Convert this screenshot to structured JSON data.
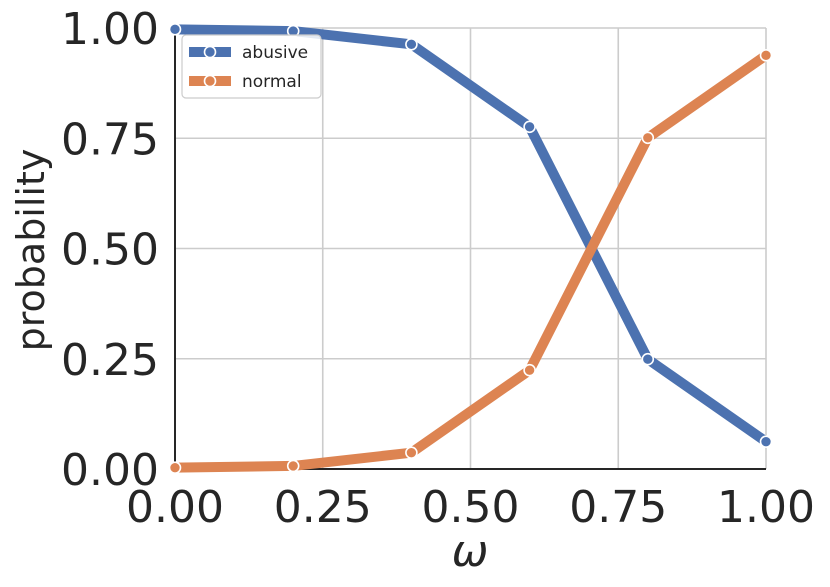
{
  "chart_data": {
    "type": "line",
    "xlabel": "ω",
    "ylabel": "probability",
    "xlim": [
      0,
      1
    ],
    "ylim": [
      0,
      1
    ],
    "x_ticks": [
      "0.00",
      "0.25",
      "0.50",
      "0.75",
      "1.00"
    ],
    "y_ticks": [
      "0.00",
      "0.25",
      "0.50",
      "0.75",
      "1.00"
    ],
    "grid": true,
    "legend_position": "top-left",
    "x": [
      0.0,
      0.2,
      0.4,
      0.6,
      0.8,
      1.0
    ],
    "series": [
      {
        "name": "abusive",
        "color": "#4c72b0",
        "values": [
          0.997,
          0.993,
          0.963,
          0.776,
          0.249,
          0.062
        ]
      },
      {
        "name": "normal",
        "color": "#dd8452",
        "values": [
          0.003,
          0.007,
          0.037,
          0.224,
          0.751,
          0.938
        ]
      }
    ]
  }
}
